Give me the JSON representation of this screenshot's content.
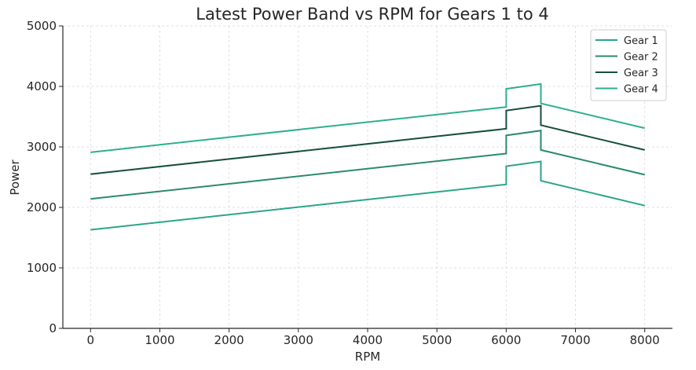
{
  "chart_data": {
    "type": "line",
    "title": "Latest Power Band vs RPM for Gears 1 to 4",
    "xlabel": "RPM",
    "ylabel": "Power",
    "xlim": [
      -400,
      8400
    ],
    "ylim": [
      0,
      5000
    ],
    "xticks": [
      0,
      1000,
      2000,
      3000,
      4000,
      5000,
      6000,
      7000,
      8000
    ],
    "yticks": [
      0,
      1000,
      2000,
      3000,
      4000,
      5000
    ],
    "grid": true,
    "legend_position": "top-right",
    "series": [
      {
        "name": "Gear 1",
        "color": "#2aa58b",
        "points": [
          [
            0,
            1630
          ],
          [
            6000,
            2380
          ],
          [
            6000,
            2680
          ],
          [
            6500,
            2760
          ],
          [
            6500,
            2440
          ],
          [
            8000,
            2030
          ]
        ]
      },
      {
        "name": "Gear 2",
        "color": "#2a8a6e",
        "points": [
          [
            0,
            2140
          ],
          [
            6000,
            2890
          ],
          [
            6000,
            3190
          ],
          [
            6500,
            3270
          ],
          [
            6500,
            2950
          ],
          [
            8000,
            2540
          ]
        ]
      },
      {
        "name": "Gear 3",
        "color": "#174f3c",
        "points": [
          [
            0,
            2550
          ],
          [
            6000,
            3300
          ],
          [
            6000,
            3600
          ],
          [
            6500,
            3680
          ],
          [
            6500,
            3360
          ],
          [
            8000,
            2950
          ]
        ]
      },
      {
        "name": "Gear 4",
        "color": "#2bb08e",
        "points": [
          [
            0,
            2910
          ],
          [
            6000,
            3660
          ],
          [
            6000,
            3960
          ],
          [
            6500,
            4040
          ],
          [
            6500,
            3720
          ],
          [
            8000,
            3310
          ]
        ]
      }
    ]
  }
}
